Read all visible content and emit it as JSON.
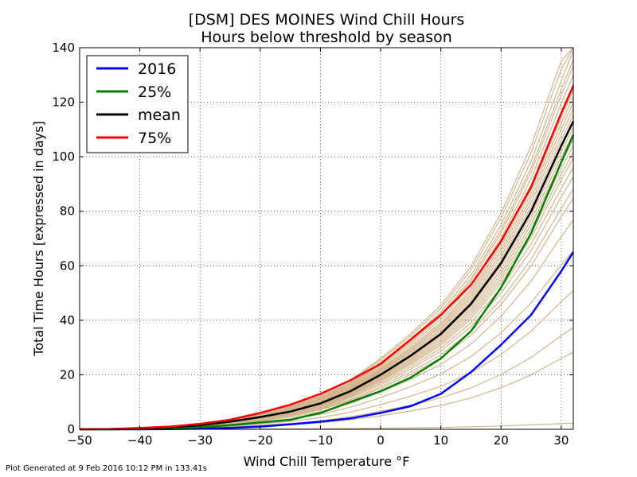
{
  "footer": "Plot Generated at 9 Feb 2016 10:12 PM in 133.41s",
  "chart_data": {
    "type": "line",
    "title": "[DSM] DES MOINES Wind Chill Hours",
    "subtitle": "Hours below threshold by season",
    "xlabel": "Wind Chill Temperature °F",
    "ylabel": "Total Time Hours [expressed in days]",
    "xlim": [
      -50,
      32
    ],
    "ylim": [
      0,
      140
    ],
    "xticks": [
      -50,
      -40,
      -30,
      -20,
      -10,
      0,
      10,
      20,
      30
    ],
    "xtick_labels": [
      "−50",
      "−40",
      "−30",
      "−20",
      "−10",
      "0",
      "10",
      "20",
      "30"
    ],
    "yticks": [
      0,
      20,
      40,
      60,
      80,
      100,
      120,
      140
    ],
    "grid": true,
    "legend_position": "top-left",
    "colors": {
      "seasons": "#d2b48c",
      "2016": "#0000ff",
      "25%": "#008000",
      "mean": "#000000",
      "75%": "#ff0000"
    },
    "x": [
      -50,
      -45,
      -40,
      -35,
      -30,
      -25,
      -20,
      -15,
      -10,
      -5,
      0,
      5,
      10,
      15,
      20,
      25,
      30,
      32
    ],
    "season_scales": [
      0.02,
      0.25,
      0.33,
      0.45,
      0.58,
      0.68,
      0.75,
      0.78,
      0.82,
      0.85,
      0.88,
      0.9,
      0.92,
      0.94,
      0.96,
      0.98,
      1.0,
      1.02,
      1.04,
      1.06,
      1.08,
      1.1,
      1.12,
      1.15,
      1.18,
      1.2,
      1.23,
      1.27,
      1.3
    ],
    "series": [
      {
        "name": "2016",
        "values": [
          0,
          0,
          0,
          0.1,
          0.2,
          0.5,
          1.0,
          1.8,
          2.8,
          4.0,
          6.0,
          8.5,
          13,
          21,
          31,
          42,
          58,
          65
        ]
      },
      {
        "name": "25%",
        "values": [
          0,
          0,
          0.1,
          0.3,
          0.8,
          1.5,
          2.5,
          3.5,
          6.0,
          10,
          14,
          19,
          26,
          36,
          52,
          72,
          98,
          108
        ]
      },
      {
        "name": "mean",
        "values": [
          0,
          0.1,
          0.3,
          0.7,
          1.5,
          2.8,
          4.5,
          6.5,
          9.5,
          14,
          20,
          27,
          35,
          46,
          61,
          80,
          104,
          113
        ]
      },
      {
        "name": "75%",
        "values": [
          0,
          0.1,
          0.5,
          1.0,
          2.0,
          3.5,
          6.0,
          9.0,
          13,
          18,
          24,
          33,
          42,
          53,
          69,
          89,
          116,
          126
        ]
      }
    ]
  }
}
